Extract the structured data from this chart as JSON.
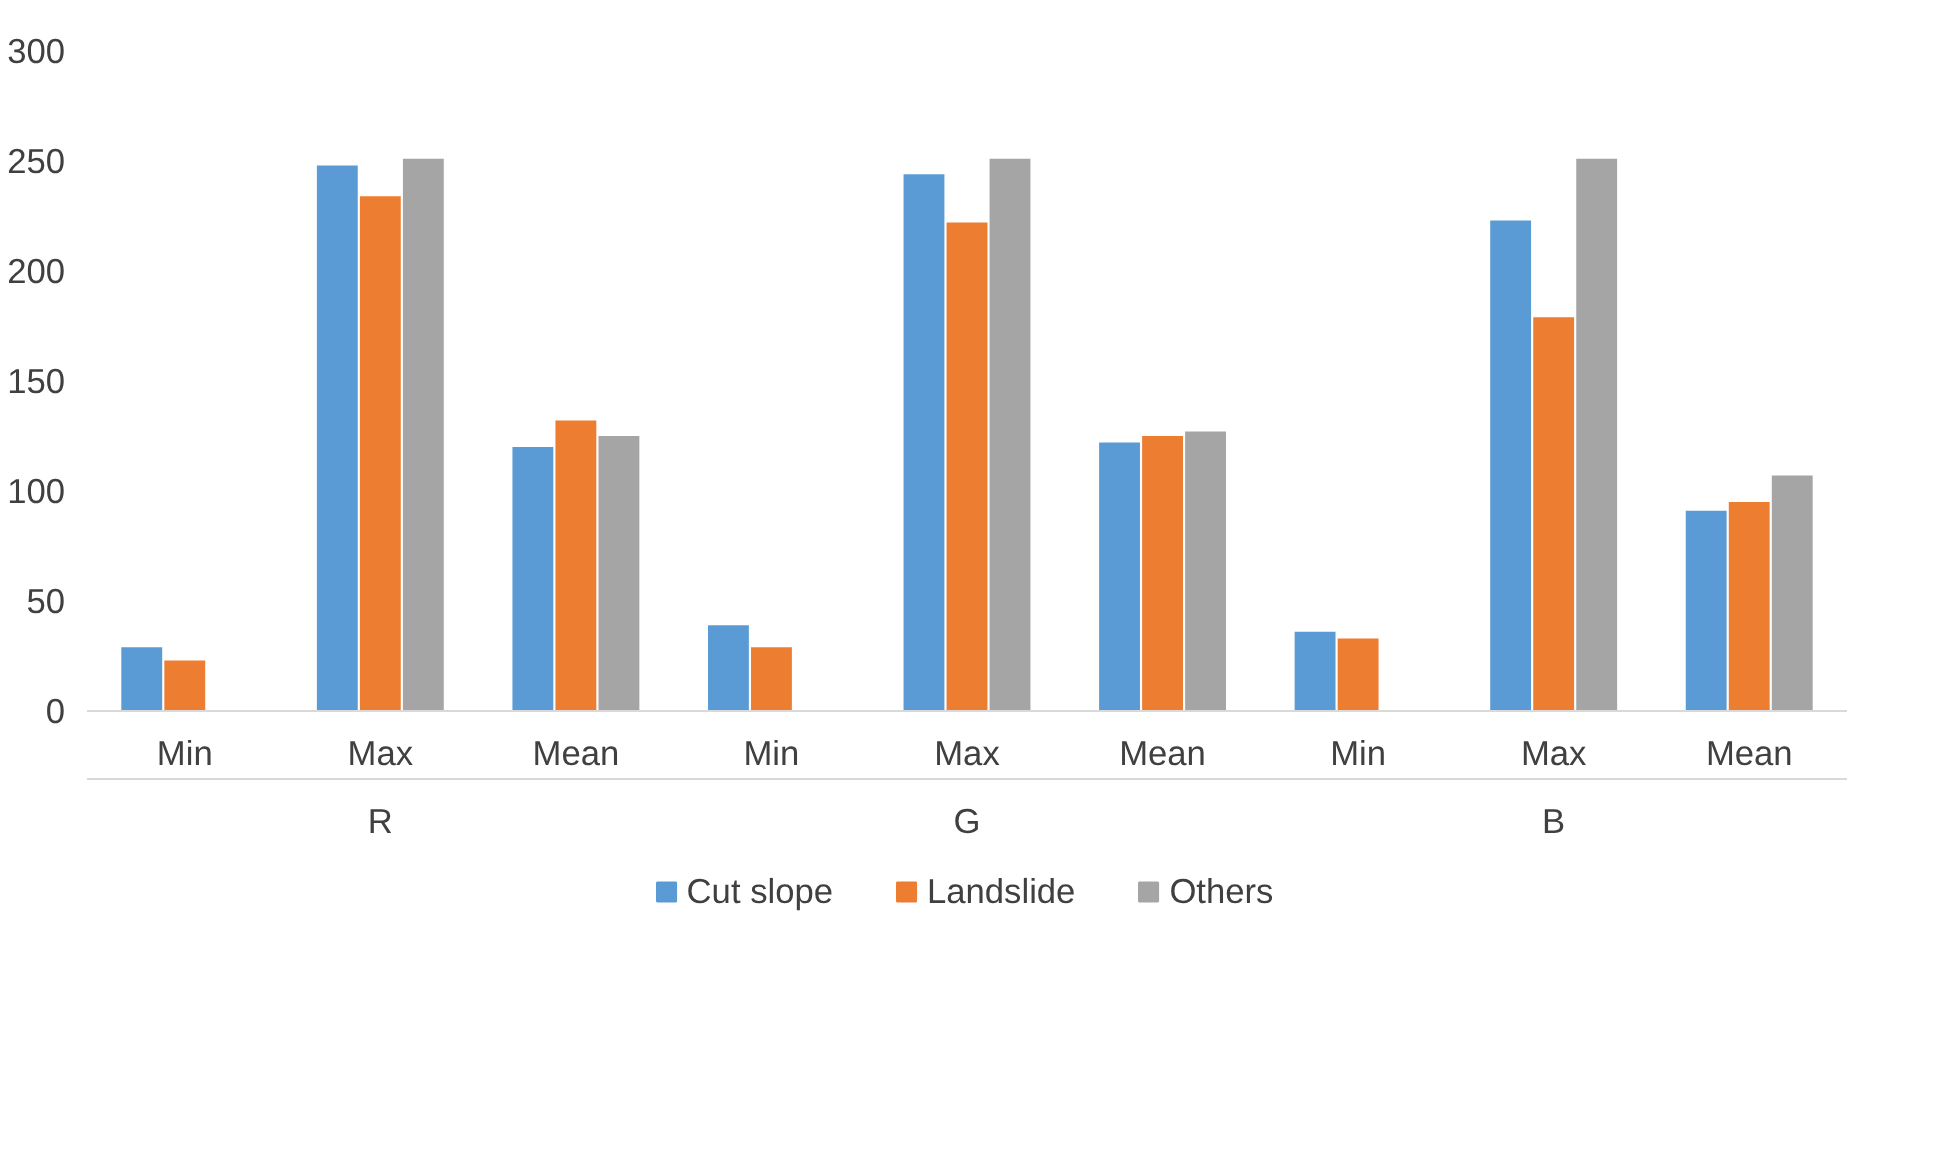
{
  "chart_data": {
    "type": "bar",
    "categories": [
      "Min",
      "Max",
      "Mean",
      "Min",
      "Max",
      "Mean",
      "Min",
      "Max",
      "Mean"
    ],
    "annotations": [
      "R",
      "G",
      "B"
    ],
    "series": [
      {
        "name": "Cut slope",
        "color": "#5b9bd5",
        "values": [
          29,
          248,
          120,
          39,
          244,
          122,
          36,
          223,
          91
        ]
      },
      {
        "name": "Landslide",
        "color": "#ed7d31",
        "values": [
          23,
          234,
          132,
          29,
          222,
          125,
          33,
          179,
          95
        ]
      },
      {
        "name": "Others",
        "color": "#a5a5a5",
        "values": [
          0,
          251,
          125,
          0,
          251,
          127,
          0,
          251,
          107
        ]
      }
    ],
    "ylim": [
      0,
      300
    ],
    "yticks": [
      0,
      50,
      100,
      150,
      200,
      250,
      300
    ],
    "grid": false,
    "legend": "bottom"
  }
}
